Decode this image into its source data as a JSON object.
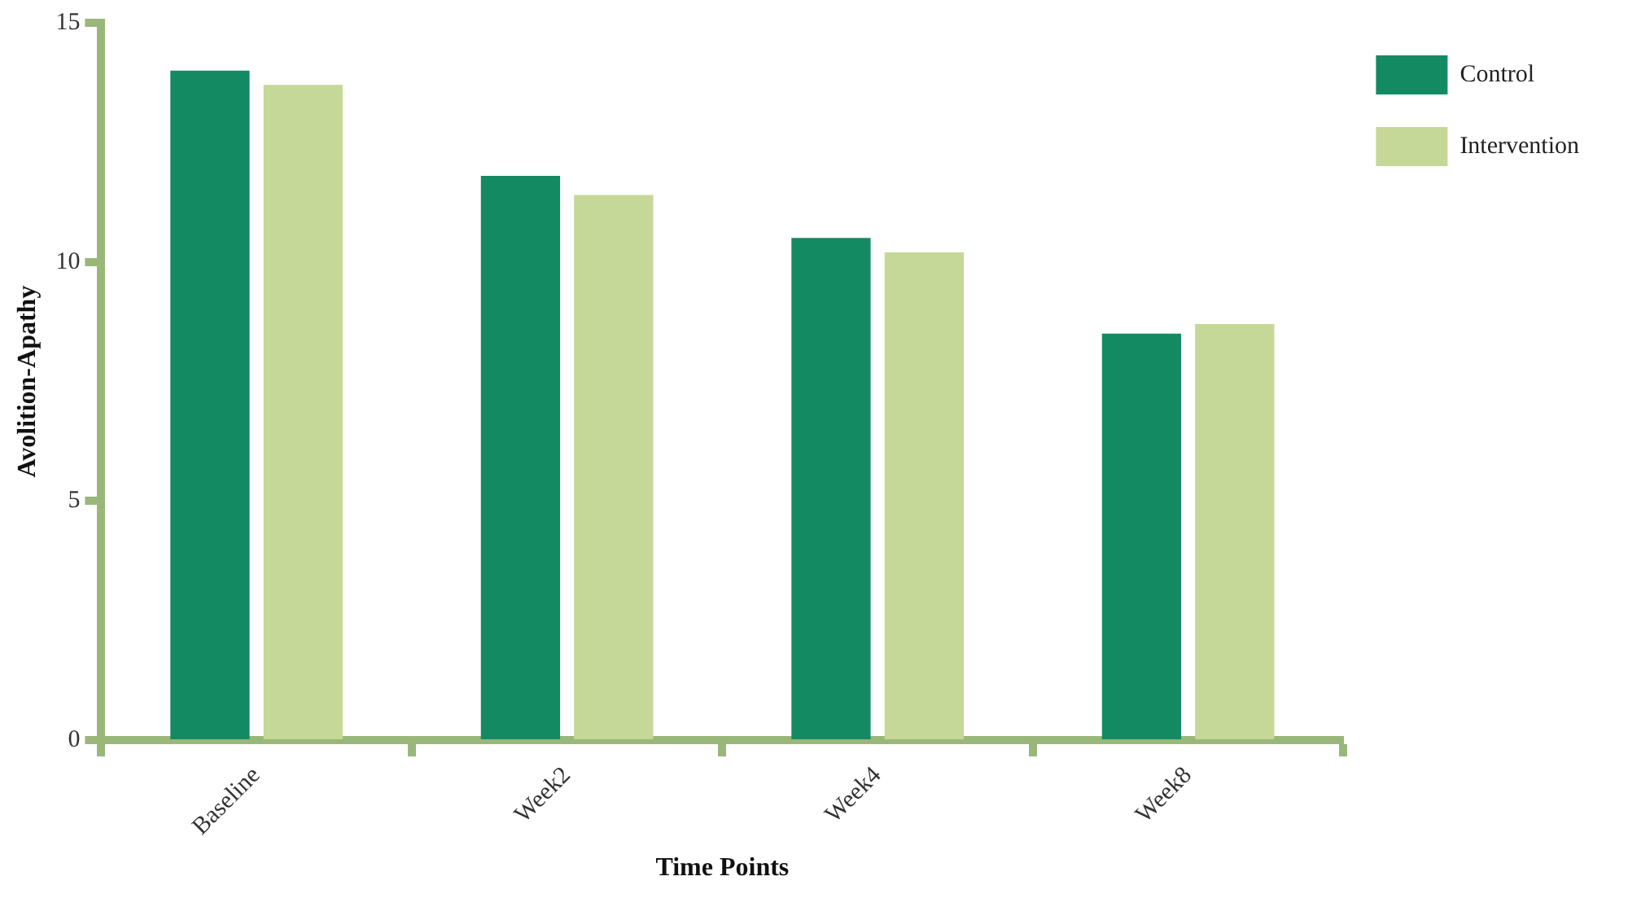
{
  "chart_data": {
    "type": "bar",
    "xlabel": "Time Points",
    "ylabel": "Avolition-Apathy",
    "categories": [
      "Baseline",
      "Week2",
      "Week4",
      "Week8"
    ],
    "series": [
      {
        "name": "Control",
        "color": "#138a62",
        "values": [
          14.0,
          11.8,
          10.5,
          8.5
        ]
      },
      {
        "name": "Intervention",
        "color": "#c5d897",
        "values": [
          13.7,
          11.4,
          10.2,
          8.7
        ]
      }
    ],
    "ylim": [
      0,
      15
    ],
    "yticks": [
      0,
      5,
      10,
      15
    ],
    "grid": false,
    "legend": "top right"
  }
}
